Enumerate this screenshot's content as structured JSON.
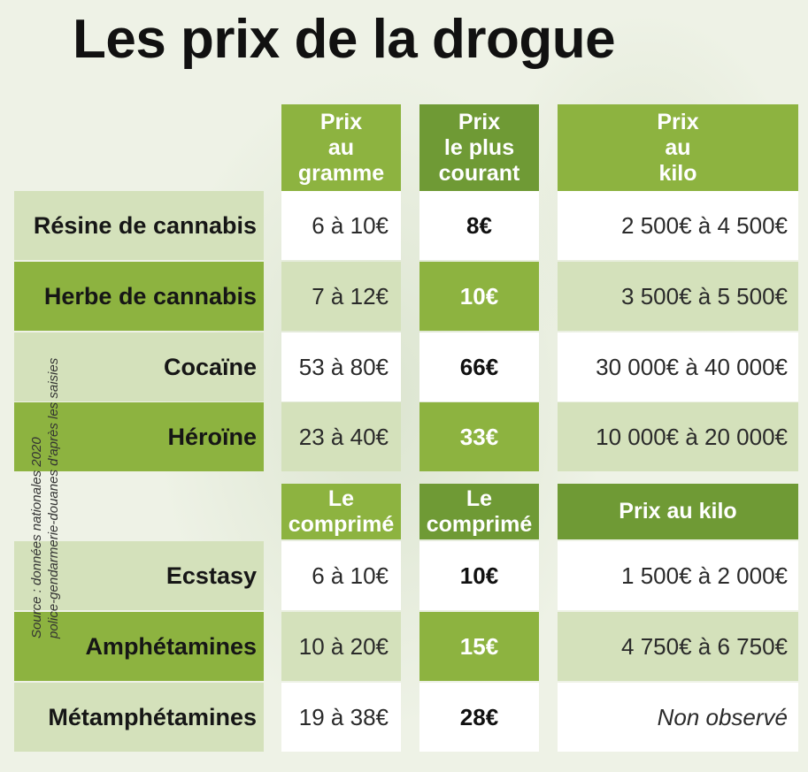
{
  "title": "Les prix de la drogue",
  "headers": {
    "section1": [
      "Prix\nau\ngramme",
      "Prix\nle plus\ncourant",
      "Prix\nau\nkilo"
    ],
    "section2": [
      "Le\ncomprimé",
      "Le\ncomprimé",
      "Prix au kilo"
    ]
  },
  "rows": [
    {
      "label": "Résine de cannabis",
      "unit_price": "6 à 10€",
      "common_price": "8€",
      "kilo_price": "2 500€ à 4 500€"
    },
    {
      "label": "Herbe de cannabis",
      "unit_price": "7 à 12€",
      "common_price": "10€",
      "kilo_price": "3 500€ à 5 500€"
    },
    {
      "label": "Cocaïne",
      "unit_price": "53 à 80€",
      "common_price": "66€",
      "kilo_price": "30 000€ à 40 000€"
    },
    {
      "label": "Héroïne",
      "unit_price": "23 à 40€",
      "common_price": "33€",
      "kilo_price": "10 000€ à 20 000€"
    },
    {
      "label": "Ecstasy",
      "unit_price": "6 à 10€",
      "common_price": "10€",
      "kilo_price": "1 500€ à 2 000€"
    },
    {
      "label": "Amphétamines",
      "unit_price": "10 à 20€",
      "common_price": "15€",
      "kilo_price": "4 750€ à 6 750€"
    },
    {
      "label": "Métamphétamines",
      "unit_price": "19 à 38€",
      "common_price": "28€",
      "kilo_price": "Non observé"
    }
  ],
  "source": {
    "line1": "Source : données nationales 2020",
    "line2": "police-gendarmerie-douanes d'après les saisies"
  },
  "colors": {
    "accent_green": "#8db340",
    "dark_green": "#6f9a35",
    "light_green": "#d4e1bb",
    "background": "#eef2e6"
  }
}
